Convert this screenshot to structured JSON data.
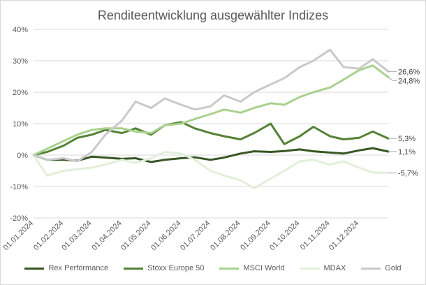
{
  "chart_data": {
    "type": "line",
    "title": "Renditeentwicklung ausgewählter Indizes",
    "xlabel": "",
    "ylabel": "",
    "ylim": [
      -20,
      40
    ],
    "yticks": [
      40,
      30,
      20,
      10,
      0,
      -10,
      -20
    ],
    "ytick_labels": [
      "40%",
      "30%",
      "20%",
      "10%",
      "0%",
      "-10%",
      "-20%"
    ],
    "xlim": [
      "2024-01-01",
      "2024-12-31"
    ],
    "xticks": [
      "2024-01-01",
      "2024-02-01",
      "2024-03-01",
      "2024-04-01",
      "2024-05-01",
      "2024-06-01",
      "2024-07-01",
      "2024-08-01",
      "2024-09-01",
      "2024-10-01",
      "2024-11-01",
      "2024-12-01"
    ],
    "xtick_labels": [
      "01.01.2024",
      "01.02.2024",
      "01.03.2024",
      "01.04.2024",
      "01.05.2024",
      "01.06.2024",
      "01.07.2024",
      "01.08.2024",
      "01.09.2024",
      "01.10.2024",
      "01.11.2024",
      "01.12.2024"
    ],
    "grid": true,
    "legend_position": "bottom",
    "series": [
      {
        "name": "Rex Performance",
        "color": "#375623",
        "stroke": 3,
        "x": [
          "2024-01-01",
          "2024-01-15",
          "2024-02-01",
          "2024-02-15",
          "2024-03-01",
          "2024-03-15",
          "2024-04-01",
          "2024-04-15",
          "2024-05-01",
          "2024-05-15",
          "2024-06-01",
          "2024-06-15",
          "2024-07-01",
          "2024-07-15",
          "2024-08-01",
          "2024-08-15",
          "2024-09-01",
          "2024-09-15",
          "2024-10-01",
          "2024-10-15",
          "2024-11-01",
          "2024-11-15",
          "2024-12-01",
          "2024-12-15",
          "2024-12-31"
        ],
        "y": [
          0,
          -1.5,
          -1.5,
          -1.8,
          -0.5,
          -0.8,
          -1.2,
          -1.0,
          -2.2,
          -1.5,
          -1.0,
          -0.7,
          -1.5,
          -0.8,
          0.5,
          1.2,
          1.0,
          1.3,
          1.8,
          1.2,
          0.8,
          0.5,
          1.5,
          2.2,
          1.1
        ],
        "end_label": "1,1%"
      },
      {
        "name": "Stoxx Europe 50",
        "color": "#548235",
        "stroke": 3,
        "x": [
          "2024-01-01",
          "2024-01-15",
          "2024-02-01",
          "2024-02-15",
          "2024-03-01",
          "2024-03-15",
          "2024-04-01",
          "2024-04-15",
          "2024-05-01",
          "2024-05-15",
          "2024-06-01",
          "2024-06-15",
          "2024-07-01",
          "2024-07-15",
          "2024-08-01",
          "2024-08-15",
          "2024-09-01",
          "2024-09-15",
          "2024-10-01",
          "2024-10-15",
          "2024-11-01",
          "2024-11-15",
          "2024-12-01",
          "2024-12-15",
          "2024-12-31"
        ],
        "y": [
          0,
          1.0,
          3.0,
          5.5,
          6.5,
          8.0,
          7.0,
          8.5,
          6.5,
          9.5,
          10.5,
          8.5,
          7.0,
          6.0,
          5.0,
          7.0,
          10.0,
          3.5,
          6.0,
          9.0,
          6.0,
          5.0,
          5.5,
          7.5,
          5.3
        ],
        "end_label": "5,3%"
      },
      {
        "name": "MSCI World",
        "color": "#a9d18e",
        "stroke": 3,
        "x": [
          "2024-01-01",
          "2024-01-15",
          "2024-02-01",
          "2024-02-15",
          "2024-03-01",
          "2024-03-15",
          "2024-04-01",
          "2024-04-15",
          "2024-05-01",
          "2024-05-15",
          "2024-06-01",
          "2024-06-15",
          "2024-07-01",
          "2024-07-15",
          "2024-08-01",
          "2024-08-15",
          "2024-09-01",
          "2024-09-15",
          "2024-10-01",
          "2024-10-15",
          "2024-11-01",
          "2024-11-15",
          "2024-12-01",
          "2024-12-15",
          "2024-12-31"
        ],
        "y": [
          0,
          2.0,
          4.5,
          6.5,
          8.0,
          8.5,
          8.5,
          7.5,
          7.0,
          9.5,
          10.0,
          11.5,
          13.0,
          14.5,
          13.5,
          15.0,
          16.5,
          16.0,
          18.5,
          20.0,
          21.5,
          24.0,
          27.0,
          28.5,
          24.8
        ],
        "end_label": "24,8%"
      },
      {
        "name": "MDAX",
        "color": "#e2efda",
        "stroke": 3,
        "x": [
          "2024-01-01",
          "2024-01-15",
          "2024-02-01",
          "2024-02-15",
          "2024-03-01",
          "2024-03-15",
          "2024-04-01",
          "2024-04-15",
          "2024-05-01",
          "2024-05-15",
          "2024-06-01",
          "2024-06-15",
          "2024-07-01",
          "2024-07-15",
          "2024-08-01",
          "2024-08-15",
          "2024-09-01",
          "2024-09-15",
          "2024-10-01",
          "2024-10-15",
          "2024-11-01",
          "2024-11-15",
          "2024-12-01",
          "2024-12-15",
          "2024-12-31"
        ],
        "y": [
          0,
          -6.5,
          -5.0,
          -4.5,
          -4.0,
          -3.0,
          -1.5,
          -2.5,
          -1.0,
          1.0,
          0.5,
          -1.5,
          -5.0,
          -6.5,
          -8.0,
          -10.5,
          -7.5,
          -5.0,
          -2.0,
          -1.5,
          -3.0,
          -2.0,
          -4.0,
          -5.5,
          -5.7
        ],
        "end_label": "-5,7%"
      },
      {
        "name": "Gold",
        "color": "#c9c9c9",
        "stroke": 3,
        "x": [
          "2024-01-01",
          "2024-01-15",
          "2024-02-01",
          "2024-02-15",
          "2024-03-01",
          "2024-03-15",
          "2024-04-01",
          "2024-04-15",
          "2024-05-01",
          "2024-05-15",
          "2024-06-01",
          "2024-06-15",
          "2024-07-01",
          "2024-07-15",
          "2024-08-01",
          "2024-08-15",
          "2024-09-01",
          "2024-09-15",
          "2024-10-01",
          "2024-10-15",
          "2024-11-01",
          "2024-11-15",
          "2024-12-01",
          "2024-12-15",
          "2024-12-31"
        ],
        "y": [
          0,
          -1.5,
          -1.0,
          -2.0,
          1.0,
          6.5,
          11.0,
          17.0,
          15.0,
          18.0,
          16.0,
          14.5,
          15.5,
          19.0,
          17.0,
          20.0,
          22.5,
          24.5,
          28.0,
          30.0,
          33.5,
          28.0,
          27.5,
          30.5,
          26.6
        ],
        "end_label": "26,6%"
      }
    ]
  }
}
